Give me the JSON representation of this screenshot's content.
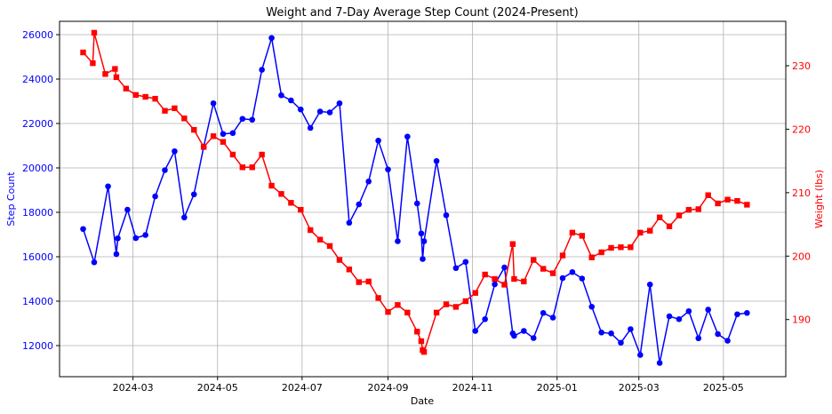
{
  "chart_data": {
    "type": "line",
    "title": "Weight and 7-Day Average Step Count (2024-Present)",
    "xlabel": "Date",
    "x_ticks": [
      "2024-03",
      "2024-05",
      "2024-07",
      "2024-09",
      "2024-11",
      "2025-01",
      "2025-03",
      "2025-05"
    ],
    "x_range": [
      "2024-01-08",
      "2025-06-15"
    ],
    "grid": true,
    "left_axis": {
      "label": "Step Count",
      "color": "#0000ff",
      "ylim": [
        10600,
        26600
      ],
      "ticks": [
        12000,
        14000,
        16000,
        18000,
        20000,
        22000,
        24000,
        26000
      ]
    },
    "right_axis": {
      "label": "Weight (lbs)",
      "color": "#ff0000",
      "ylim": [
        181,
        237
      ],
      "ticks": [
        190,
        200,
        210,
        220,
        230
      ]
    },
    "series": [
      {
        "axis": "left",
        "color": "#0000ff",
        "marker": "circle",
        "x": [
          "2024-01-25",
          "2024-02-02",
          "2024-02-12",
          "2024-02-18",
          "2024-02-19",
          "2024-02-26",
          "2024-03-03",
          "2024-03-10",
          "2024-03-17",
          "2024-03-24",
          "2024-03-31",
          "2024-04-07",
          "2024-04-14",
          "2024-04-21",
          "2024-04-28",
          "2024-05-05",
          "2024-05-12",
          "2024-05-19",
          "2024-05-26",
          "2024-06-02",
          "2024-06-09",
          "2024-06-16",
          "2024-06-23",
          "2024-06-30",
          "2024-07-07",
          "2024-07-14",
          "2024-07-21",
          "2024-07-28",
          "2024-08-04",
          "2024-08-11",
          "2024-08-18",
          "2024-08-25",
          "2024-09-01",
          "2024-09-08",
          "2024-09-15",
          "2024-09-22",
          "2024-09-25",
          "2024-09-26",
          "2024-09-27",
          "2024-10-06",
          "2024-10-13",
          "2024-10-20",
          "2024-10-27",
          "2024-11-03",
          "2024-11-10",
          "2024-11-17",
          "2024-11-24",
          "2024-11-30",
          "2024-12-01",
          "2024-12-08",
          "2024-12-15",
          "2024-12-22",
          "2024-12-29",
          "2025-01-05",
          "2025-01-12",
          "2025-01-19",
          "2025-01-26",
          "2025-02-02",
          "2025-02-09",
          "2025-02-16",
          "2025-02-23",
          "2025-03-02",
          "2025-03-09",
          "2025-03-16",
          "2025-03-23",
          "2025-03-30",
          "2025-04-06",
          "2025-04-13",
          "2025-04-20",
          "2025-04-27",
          "2025-05-04",
          "2025-05-11",
          "2025-05-18"
        ],
        "values": [
          17250,
          15750,
          19170,
          16120,
          16830,
          18120,
          16840,
          16980,
          18720,
          19900,
          20750,
          17770,
          18810,
          20960,
          22910,
          21530,
          21570,
          22210,
          22170,
          24420,
          25850,
          23270,
          23040,
          22630,
          21800,
          22540,
          22500,
          22910,
          17530,
          18360,
          19390,
          21230,
          19930,
          16700,
          21410,
          18400,
          17050,
          15900,
          16700,
          20310,
          17870,
          15490,
          15770,
          12660,
          13190,
          14760,
          15520,
          12550,
          12440,
          12660,
          12340,
          13470,
          13260,
          15040,
          15310,
          15020,
          13750,
          12590,
          12550,
          12130,
          12740,
          11580,
          14750,
          11220,
          13320,
          13190,
          13550,
          12330,
          13620,
          12520,
          12220,
          13410,
          13470
        ]
      },
      {
        "axis": "right",
        "color": "#ff0000",
        "marker": "square",
        "x": [
          "2024-01-25",
          "2024-02-01",
          "2024-02-02",
          "2024-02-10",
          "2024-02-17",
          "2024-02-18",
          "2024-02-25",
          "2024-03-03",
          "2024-03-10",
          "2024-03-17",
          "2024-03-24",
          "2024-03-31",
          "2024-04-07",
          "2024-04-14",
          "2024-04-21",
          "2024-04-28",
          "2024-05-05",
          "2024-05-12",
          "2024-05-19",
          "2024-05-26",
          "2024-06-02",
          "2024-06-09",
          "2024-06-16",
          "2024-06-23",
          "2024-06-30",
          "2024-07-07",
          "2024-07-14",
          "2024-07-21",
          "2024-07-28",
          "2024-08-04",
          "2024-08-11",
          "2024-08-18",
          "2024-08-25",
          "2024-09-01",
          "2024-09-08",
          "2024-09-15",
          "2024-09-22",
          "2024-09-25",
          "2024-09-26",
          "2024-09-27",
          "2024-10-06",
          "2024-10-13",
          "2024-10-20",
          "2024-10-27",
          "2024-11-03",
          "2024-11-10",
          "2024-11-17",
          "2024-11-24",
          "2024-11-30",
          "2024-12-01",
          "2024-12-08",
          "2024-12-15",
          "2024-12-22",
          "2024-12-29",
          "2025-01-05",
          "2025-01-12",
          "2025-01-19",
          "2025-01-26",
          "2025-02-02",
          "2025-02-09",
          "2025-02-16",
          "2025-02-23",
          "2025-03-02",
          "2025-03-09",
          "2025-03-16",
          "2025-03-23",
          "2025-03-30",
          "2025-04-06",
          "2025-04-13",
          "2025-04-20",
          "2025-04-27",
          "2025-05-04",
          "2025-05-11",
          "2025-05-18"
        ],
        "values": [
          232.1,
          230.4,
          235.2,
          228.7,
          229.5,
          228.2,
          226.4,
          225.4,
          225.1,
          224.8,
          222.9,
          223.3,
          221.7,
          219.9,
          217.2,
          218.9,
          218.0,
          216.0,
          214.0,
          214.0,
          216.0,
          211.1,
          209.8,
          208.4,
          207.3,
          204.1,
          202.6,
          201.6,
          199.4,
          197.9,
          195.9,
          196.0,
          193.4,
          191.2,
          192.3,
          191.1,
          188.1,
          186.6,
          185.2,
          184.9,
          191.1,
          192.4,
          192.0,
          192.9,
          194.2,
          197.1,
          196.4,
          195.5,
          201.9,
          196.4,
          196.0,
          199.4,
          198.0,
          197.3,
          200.1,
          203.7,
          203.2,
          199.8,
          200.6,
          201.3,
          201.4,
          201.4,
          203.7,
          204.0,
          206.1,
          204.7,
          206.4,
          207.3,
          207.4,
          209.6,
          208.3,
          208.9,
          208.7,
          208.1
        ]
      }
    ]
  }
}
